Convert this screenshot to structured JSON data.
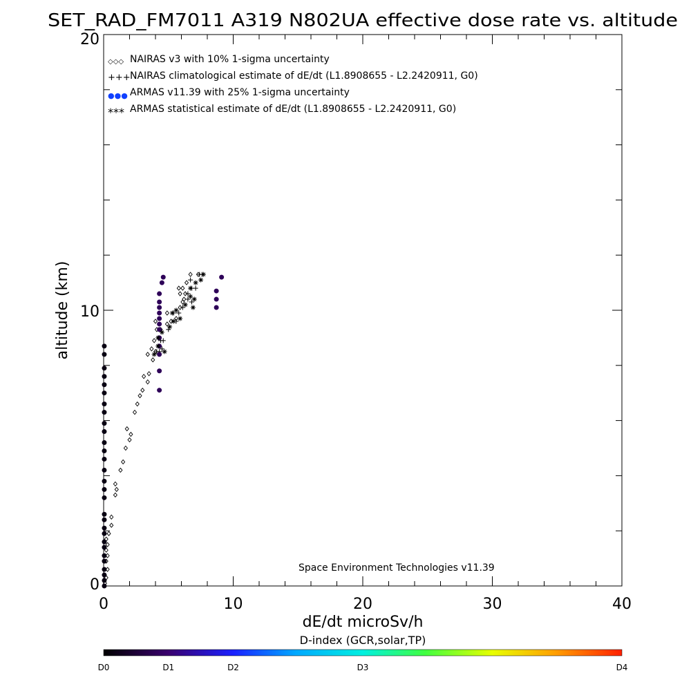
{
  "chart_data": {
    "type": "scatter",
    "title": "SET_RAD_FM7011  A319 N802UA effective dose rate vs. altitude",
    "xlabel": "dE/dt microSv/h",
    "ylabel": "altitude (km)",
    "xlim": [
      0,
      40
    ],
    "ylim": [
      0,
      20
    ],
    "x_ticks": [
      "0",
      "10",
      "20",
      "30",
      "40"
    ],
    "y_ticks": [
      "0",
      "10",
      "20"
    ],
    "grid": false,
    "legend_position": "top-left",
    "credit": "Space Environment Technologies v11.39",
    "legend": [
      {
        "symbol": "◇◇◇",
        "label": "NAIRAS v3 with 10% 1-sigma uncertainty"
      },
      {
        "symbol": "+++",
        "label": "NAIRAS climatological estimate of dE/dt (L1.8908655 - L2.2420911, G0)"
      },
      {
        "symbol": "●●●",
        "label": "ARMAS v11.39 with 25% 1-sigma uncertainty"
      },
      {
        "symbol": "***",
        "label": "ARMAS statistical estimate of dE/dt (L1.8908655 - L2.2420911, G0)"
      }
    ],
    "colorbar": {
      "title": "D-index (GCR,solar,TP)",
      "labels": [
        {
          "text": "D0",
          "value": 0
        },
        {
          "text": "D1",
          "value": 0.125
        },
        {
          "text": "D2",
          "value": 0.25
        },
        {
          "text": "D3",
          "value": 0.5
        },
        {
          "text": "D4",
          "value": 1.0
        }
      ]
    },
    "series": [
      {
        "name": "NAIRAS v3 with 10% 1-sigma uncertainty",
        "marker": "diamond",
        "color": "#000000",
        "points": [
          [
            0.1,
            0.1
          ],
          [
            0.2,
            0.3
          ],
          [
            0.3,
            0.6
          ],
          [
            0.2,
            0.9
          ],
          [
            0.3,
            1.1
          ],
          [
            0.2,
            1.3
          ],
          [
            0.3,
            1.5
          ],
          [
            0.2,
            1.7
          ],
          [
            0.4,
            1.9
          ],
          [
            0.6,
            2.2
          ],
          [
            0.6,
            2.5
          ],
          [
            0.9,
            3.3
          ],
          [
            1.0,
            3.5
          ],
          [
            0.9,
            3.7
          ],
          [
            1.3,
            4.2
          ],
          [
            1.5,
            4.5
          ],
          [
            1.7,
            5.0
          ],
          [
            2.0,
            5.3
          ],
          [
            2.1,
            5.5
          ],
          [
            1.8,
            5.7
          ],
          [
            2.4,
            6.3
          ],
          [
            2.6,
            6.6
          ],
          [
            2.8,
            6.9
          ],
          [
            3.0,
            7.1
          ],
          [
            3.4,
            7.4
          ],
          [
            3.1,
            7.6
          ],
          [
            3.5,
            7.7
          ],
          [
            3.8,
            8.2
          ],
          [
            3.4,
            8.4
          ],
          [
            3.7,
            8.6
          ],
          [
            4.0,
            8.5
          ],
          [
            3.9,
            8.9
          ],
          [
            4.1,
            9.3
          ],
          [
            4.0,
            9.6
          ],
          [
            4.4,
            9.3
          ],
          [
            4.9,
            9.5
          ],
          [
            5.2,
            9.6
          ],
          [
            4.9,
            9.9
          ],
          [
            5.6,
            9.7
          ],
          [
            5.9,
            10.1
          ],
          [
            6.1,
            10.3
          ],
          [
            5.9,
            10.6
          ],
          [
            6.2,
            10.4
          ],
          [
            6.3,
            10.6
          ],
          [
            5.8,
            10.8
          ],
          [
            6.1,
            10.8
          ],
          [
            6.4,
            11.0
          ],
          [
            6.7,
            11.3
          ],
          [
            7.3,
            11.3
          ]
        ]
      },
      {
        "name": "NAIRAS climatological estimate of dE/dt (L1.8908655 - L2.2420911, G0)",
        "marker": "plus",
        "color": "#000000",
        "points": [
          [
            4.1,
            8.5
          ],
          [
            4.3,
            8.5
          ],
          [
            4.4,
            8.9
          ],
          [
            4.6,
            8.9
          ],
          [
            4.5,
            8.6
          ],
          [
            5.0,
            9.3
          ],
          [
            5.6,
            9.6
          ],
          [
            5.4,
            9.9
          ],
          [
            5.8,
            9.9
          ],
          [
            6.1,
            10.1
          ],
          [
            6.5,
            10.4
          ],
          [
            6.8,
            10.3
          ],
          [
            6.5,
            10.6
          ],
          [
            6.8,
            10.8
          ],
          [
            7.1,
            10.8
          ],
          [
            6.7,
            11.1
          ],
          [
            7.4,
            11.3
          ],
          [
            7.6,
            11.3
          ]
        ]
      },
      {
        "name": "ARMAS v11.39 with 25% 1-sigma uncertainty",
        "marker": "dot",
        "color_by_dindex": true,
        "points": [
          [
            0.05,
            0.0,
            0.02
          ],
          [
            0.05,
            0.2,
            0.02
          ],
          [
            0.05,
            0.4,
            0.02
          ],
          [
            0.05,
            0.6,
            0.02
          ],
          [
            0.05,
            0.9,
            0.02
          ],
          [
            0.05,
            1.1,
            0.02
          ],
          [
            0.05,
            1.4,
            0.02
          ],
          [
            0.05,
            1.6,
            0.02
          ],
          [
            0.05,
            1.9,
            0.02
          ],
          [
            0.05,
            2.1,
            0.02
          ],
          [
            0.05,
            2.4,
            0.02
          ],
          [
            0.05,
            2.6,
            0.02
          ],
          [
            0.05,
            3.2,
            0.02
          ],
          [
            0.05,
            3.5,
            0.02
          ],
          [
            0.05,
            3.8,
            0.02
          ],
          [
            0.05,
            4.2,
            0.02
          ],
          [
            0.05,
            4.6,
            0.02
          ],
          [
            0.05,
            4.9,
            0.02
          ],
          [
            0.05,
            5.2,
            0.02
          ],
          [
            0.05,
            5.6,
            0.02
          ],
          [
            0.05,
            5.9,
            0.02
          ],
          [
            0.05,
            6.3,
            0.02
          ],
          [
            0.05,
            6.6,
            0.02
          ],
          [
            0.05,
            7.0,
            0.02
          ],
          [
            0.05,
            7.3,
            0.02
          ],
          [
            0.05,
            7.6,
            0.02
          ],
          [
            0.05,
            7.9,
            0.02
          ],
          [
            0.05,
            8.4,
            0.02
          ],
          [
            0.05,
            8.7,
            0.02
          ],
          [
            4.3,
            7.1,
            0.1
          ],
          [
            4.3,
            7.8,
            0.1
          ],
          [
            4.3,
            8.4,
            0.1
          ],
          [
            4.3,
            8.7,
            0.1
          ],
          [
            4.3,
            9.0,
            0.1
          ],
          [
            4.3,
            9.3,
            0.1
          ],
          [
            4.3,
            9.5,
            0.1
          ],
          [
            4.3,
            9.7,
            0.1
          ],
          [
            4.3,
            9.9,
            0.1
          ],
          [
            4.3,
            10.1,
            0.1
          ],
          [
            4.3,
            10.3,
            0.1
          ],
          [
            4.3,
            10.6,
            0.1
          ],
          [
            4.5,
            11.0,
            0.1
          ],
          [
            4.6,
            11.2,
            0.1
          ],
          [
            8.7,
            10.1,
            0.1
          ],
          [
            8.7,
            10.4,
            0.1
          ],
          [
            8.7,
            10.7,
            0.1
          ],
          [
            9.1,
            11.2,
            0.1
          ]
        ]
      },
      {
        "name": "ARMAS statistical estimate of dE/dt (L1.8908655 - L2.2420911, G0)",
        "marker": "asterisk",
        "color": "#000000",
        "points": [
          [
            3.9,
            8.4
          ],
          [
            4.2,
            8.7
          ],
          [
            4.7,
            8.5
          ],
          [
            4.2,
            9.0
          ],
          [
            4.5,
            9.2
          ],
          [
            5.1,
            9.4
          ],
          [
            5.4,
            9.6
          ],
          [
            5.9,
            9.7
          ],
          [
            5.3,
            9.9
          ],
          [
            5.6,
            10.0
          ],
          [
            6.3,
            10.2
          ],
          [
            6.9,
            10.1
          ],
          [
            6.7,
            10.5
          ],
          [
            7.0,
            10.4
          ],
          [
            6.7,
            10.8
          ],
          [
            7.1,
            11.0
          ],
          [
            7.5,
            11.1
          ],
          [
            7.7,
            11.3
          ]
        ]
      }
    ]
  }
}
